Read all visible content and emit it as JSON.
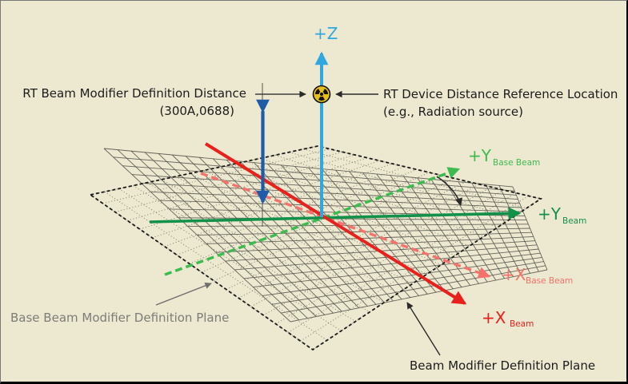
{
  "figure": {
    "background_color": "#EDE8D0",
    "labels": {
      "distance_line1": "RT Beam Modifier Definition Distance",
      "distance_line2": "(300A,0688)",
      "reference_line1": "RT Device Distance Reference Location",
      "reference_line2": "(e.g., Radiation source)",
      "base_plane": "Base Beam Modifier Definition Plane",
      "beam_plane": "Beam Modifier Definition Plane"
    },
    "axes": {
      "z": {
        "label": "+Z",
        "color": "#2FA8DF"
      },
      "y_beam": {
        "label": "+Y",
        "sub": "Beam",
        "color": "#12914A"
      },
      "y_base_beam": {
        "label": "+Y",
        "sub": "Base Beam",
        "color": "#3CBB4F"
      },
      "x_beam": {
        "label": "+X",
        "sub": "Beam",
        "color": "#E9211C"
      },
      "x_base_beam": {
        "label": "+X",
        "sub": "Base Beam",
        "color": "#F4726B"
      }
    },
    "measure_arrow_color": "#1E5CA8",
    "pointer_color": "#2A2A2A",
    "plane_pointer_color": "#6E6E6E",
    "radiation_symbol_color": "#E6C019",
    "planes": {
      "beam_grid_style": "solid",
      "base_grid_style": "dotted-dashed"
    }
  }
}
